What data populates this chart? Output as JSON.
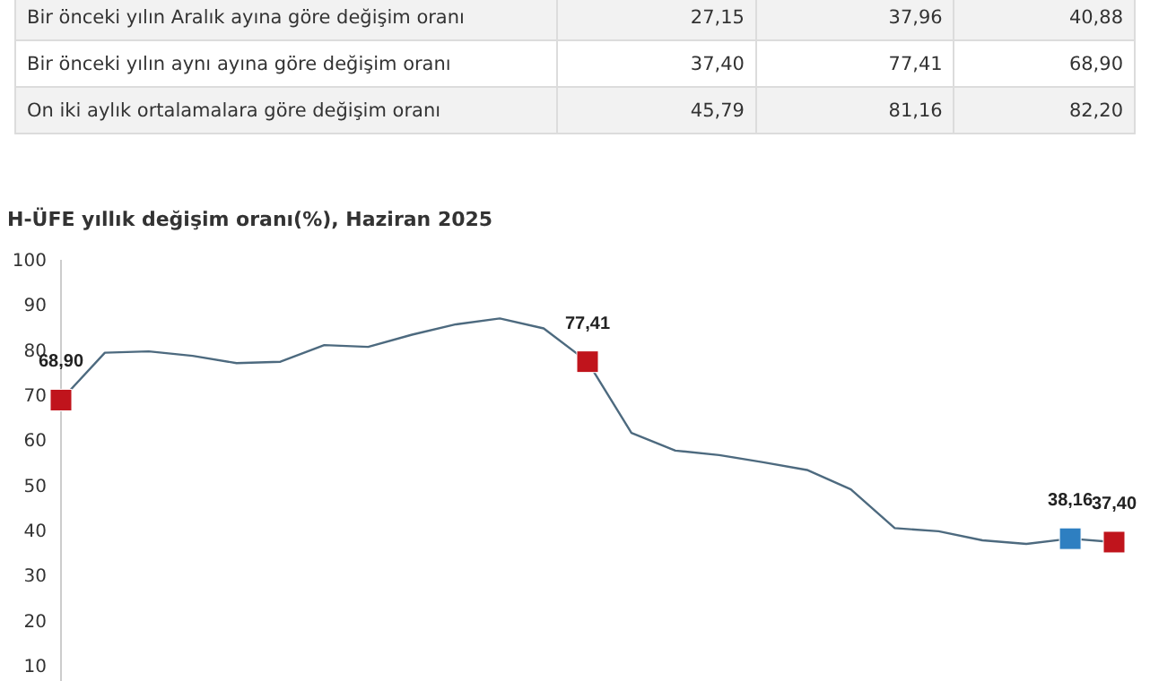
{
  "chart_data": [
    {
      "type": "other",
      "y_categories": [
        "Bir önceki yılın Aralık ayına göre değişim oranı",
        "Bir önceki yılın aynı ayına göre değişim oranı",
        "On iki aylık ortalamalara göre değişim oranı"
      ],
      "cell_labels": [
        [
          "27,15",
          "37,96",
          "40,88"
        ],
        [
          "37,40",
          "77,41",
          "68,90"
        ],
        [
          "45,79",
          "81,16",
          "82,20"
        ]
      ]
    },
    {
      "type": "line",
      "title": "H-ÜFE yıllık değişim oranı(%), Haziran 2025",
      "categories": [
        null,
        null,
        null,
        null,
        null,
        null,
        null,
        null,
        null,
        null,
        null,
        null,
        null,
        null,
        null,
        null,
        null,
        null,
        null,
        null,
        null,
        null,
        null,
        null,
        null
      ],
      "ylim": [
        5,
        100
      ],
      "yticks": [
        10,
        20,
        30,
        40,
        50,
        60,
        70,
        80,
        90,
        100
      ],
      "grid": false,
      "tick_labels": "y",
      "series": [
        {
          "type": "line",
          "color": "#4d6a7f",
          "marker": "none",
          "values": [
            68.9,
            79.4,
            79.7,
            78.7,
            77.1,
            77.4,
            81.1,
            80.7,
            83.4,
            85.7,
            87.0,
            84.8,
            77.41,
            61.6,
            57.7,
            56.7,
            55.1,
            53.4,
            49.1,
            40.5,
            39.8,
            37.8,
            37.0,
            38.16,
            37.4
          ]
        },
        {
          "type": "scatter",
          "marker": "square",
          "values": [
            68.9,
            null,
            null,
            null,
            null,
            null,
            null,
            null,
            null,
            null,
            null,
            null,
            77.41,
            null,
            null,
            null,
            null,
            null,
            null,
            null,
            null,
            null,
            null,
            38.16,
            37.4
          ],
          "colors": [
            "#c0141c",
            null,
            null,
            null,
            null,
            null,
            null,
            null,
            null,
            null,
            null,
            null,
            "#c0141c",
            null,
            null,
            null,
            null,
            null,
            null,
            null,
            null,
            null,
            null,
            "#2e7fc1",
            "#c0141c"
          ],
          "value_labels": [
            "68,90",
            null,
            null,
            null,
            null,
            null,
            null,
            null,
            null,
            null,
            null,
            null,
            "77,41",
            null,
            null,
            null,
            null,
            null,
            null,
            null,
            null,
            null,
            null,
            "38,16",
            "37,40"
          ]
        }
      ]
    }
  ]
}
